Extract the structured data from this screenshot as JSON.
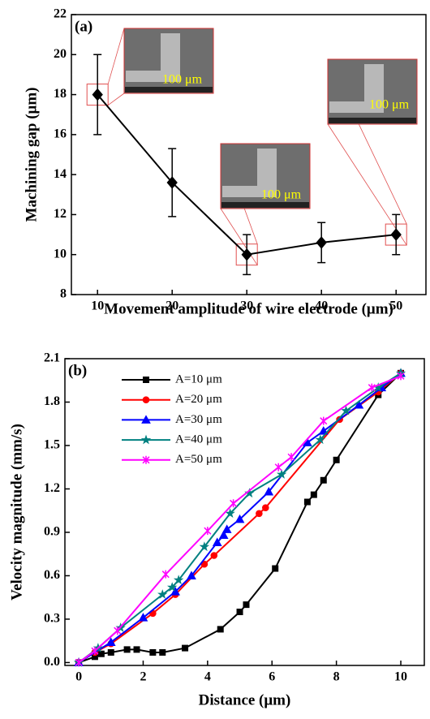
{
  "chart_data": [
    {
      "type": "line",
      "panel_label": "(a)",
      "x_label": "Movement amplitude of wire electrode (μm)",
      "y_label": "Machining gap (μm)",
      "x": [
        10,
        20,
        30,
        40,
        50
      ],
      "series": [
        {
          "color": "#000000",
          "marker": "diamond",
          "values": [
            18,
            13.6,
            10,
            10.6,
            11
          ],
          "errors": [
            2,
            1.7,
            1,
            1,
            1
          ]
        }
      ],
      "xlim": [
        6.5,
        54
      ],
      "xticks": [
        10,
        20,
        30,
        40,
        50
      ],
      "ylim": [
        8,
        22
      ],
      "yticks": [
        8,
        10,
        12,
        14,
        16,
        18,
        20,
        22
      ],
      "annotations": [
        "100 μm",
        "100 μm",
        "100 μm"
      ]
    },
    {
      "type": "line",
      "panel_label": "(b)",
      "x_label": "Distance (μm)",
      "y_label": "Velocity magnitude (mm/s)",
      "legend": "upper left",
      "series": [
        {
          "name": "A=10 μm",
          "color": "#000000",
          "marker": "square",
          "x": [
            0,
            0.5,
            0.7,
            1,
            1.5,
            1.8,
            2.3,
            2.6,
            3.3,
            4.4,
            5,
            5.2,
            6.1,
            7.1,
            7.3,
            7.6,
            8,
            9.3,
            10
          ],
          "values": [
            0,
            0.04,
            0.06,
            0.07,
            0.09,
            0.09,
            0.07,
            0.07,
            0.1,
            0.23,
            0.35,
            0.4,
            0.65,
            1.11,
            1.16,
            1.26,
            1.4,
            1.85,
            2.0
          ]
        },
        {
          "name": "A=20 μm",
          "color": "#ff0000",
          "marker": "circle",
          "x": [
            0,
            0.5,
            1,
            2.3,
            3,
            3.9,
            4.2,
            5.6,
            5.8,
            8.1,
            9.3,
            10
          ],
          "values": [
            0,
            0.07,
            0.13,
            0.34,
            0.47,
            0.68,
            0.74,
            1.03,
            1.07,
            1.68,
            1.87,
            2.0
          ]
        },
        {
          "name": "A=30 μm",
          "color": "#0000ff",
          "marker": "triangle",
          "x": [
            0,
            1,
            2,
            3,
            3.5,
            4.3,
            4.5,
            4.6,
            5,
            5.9,
            7.1,
            7.6,
            8.7,
            9.4,
            10
          ],
          "values": [
            0,
            0.14,
            0.31,
            0.49,
            0.6,
            0.83,
            0.88,
            0.92,
            0.99,
            1.18,
            1.52,
            1.6,
            1.78,
            1.9,
            2.0
          ]
        },
        {
          "name": "A=40 μm",
          "color": "#008080",
          "marker": "star",
          "x": [
            0,
            0.6,
            1.3,
            2.6,
            2.9,
            3.1,
            3.9,
            4.7,
            5.3,
            6.3,
            7.5,
            8.3,
            9.3,
            10
          ],
          "values": [
            0,
            0.1,
            0.24,
            0.47,
            0.52,
            0.57,
            0.8,
            1.03,
            1.17,
            1.3,
            1.54,
            1.74,
            1.9,
            2.0
          ]
        },
        {
          "name": "A=50 μm",
          "color": "#ff00ff",
          "marker": "x",
          "x": [
            0,
            0.5,
            1.2,
            2.7,
            4,
            4.8,
            6.2,
            6.6,
            7.6,
            9.1,
            10
          ],
          "values": [
            0,
            0.08,
            0.22,
            0.61,
            0.91,
            1.1,
            1.35,
            1.42,
            1.67,
            1.9,
            1.98
          ]
        }
      ],
      "xlim": [
        -0.43,
        10.73
      ],
      "xticks": [
        0,
        2,
        4,
        6,
        8,
        10
      ],
      "ylim": [
        -0.02,
        2.1
      ],
      "yticks": [
        {
          "value": 0,
          "label": "0.0"
        },
        0.3,
        0.6,
        0.9,
        1.2,
        1.5,
        1.8,
        2.1
      ]
    }
  ]
}
